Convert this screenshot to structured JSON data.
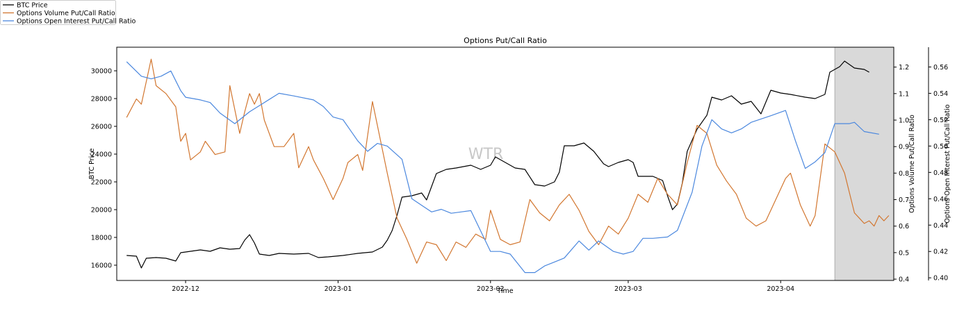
{
  "chart_data": {
    "type": "line",
    "title": "Options Put/Call Ratio",
    "xlabel": "Time",
    "watermark": "WTR",
    "x_range": [
      "2022-11-17",
      "2023-04-24"
    ],
    "x_ticks": [
      "2022-12",
      "2023-01",
      "2023-02",
      "2023-03",
      "2023-04"
    ],
    "highlight_span": [
      "2023-04-12",
      "2023-04-24"
    ],
    "highlight_color": "#d9d9d9",
    "axes": {
      "left": {
        "label": "BTC Price",
        "ylim": [
          14900,
          31700
        ],
        "ticks": [
          "16000",
          "18000",
          "20000",
          "22000",
          "24000",
          "26000",
          "28000",
          "30000"
        ]
      },
      "right1": {
        "label": "Options Volume Put/Call Ratio",
        "ylim": [
          0.395,
          1.275
        ],
        "ticks": [
          "0.4",
          "0.5",
          "0.6",
          "0.7",
          "0.8",
          "0.9",
          "1.0",
          "1.1",
          "1.2"
        ]
      },
      "right2": {
        "label": "Options Open Interest Put/Call Ratio",
        "ylim": [
          0.398,
          0.575
        ],
        "ticks": [
          "0.40",
          "0.42",
          "0.44",
          "0.46",
          "0.48",
          "0.50",
          "0.52",
          "0.54",
          "0.56"
        ]
      }
    },
    "legend": [
      {
        "name": "BTC Price",
        "color": "#000000"
      },
      {
        "name": "Options Volume Put/Call Ratio",
        "color": "#d2762f"
      },
      {
        "name": "Options Open Interest Put/Call Ratio",
        "color": "#4a87de"
      }
    ],
    "series": [
      {
        "name": "BTC Price",
        "axis": "left",
        "color": "#000000",
        "points": [
          [
            "2022-11-19",
            16700
          ],
          [
            "2022-11-21",
            16650
          ],
          [
            "2022-11-22",
            15800
          ],
          [
            "2022-11-23",
            16500
          ],
          [
            "2022-11-25",
            16550
          ],
          [
            "2022-11-27",
            16500
          ],
          [
            "2022-11-29",
            16300
          ],
          [
            "2022-11-30",
            16900
          ],
          [
            "2022-12-02",
            17000
          ],
          [
            "2022-12-04",
            17100
          ],
          [
            "2022-12-06",
            17000
          ],
          [
            "2022-12-08",
            17250
          ],
          [
            "2022-12-10",
            17150
          ],
          [
            "2022-12-12",
            17200
          ],
          [
            "2022-12-13",
            17800
          ],
          [
            "2022-12-14",
            18200
          ],
          [
            "2022-12-15",
            17600
          ],
          [
            "2022-12-16",
            16800
          ],
          [
            "2022-12-18",
            16700
          ],
          [
            "2022-12-20",
            16850
          ],
          [
            "2022-12-23",
            16800
          ],
          [
            "2022-12-26",
            16850
          ],
          [
            "2022-12-28",
            16550
          ],
          [
            "2022-12-30",
            16600
          ],
          [
            "2023-01-02",
            16700
          ],
          [
            "2023-01-05",
            16850
          ],
          [
            "2023-01-08",
            16950
          ],
          [
            "2023-01-10",
            17300
          ],
          [
            "2023-01-11",
            17800
          ],
          [
            "2023-01-12",
            18500
          ],
          [
            "2023-01-13",
            19600
          ],
          [
            "2023-01-14",
            20900
          ],
          [
            "2023-01-16",
            21000
          ],
          [
            "2023-01-18",
            21200
          ],
          [
            "2023-01-19",
            20700
          ],
          [
            "2023-01-21",
            22600
          ],
          [
            "2023-01-23",
            22900
          ],
          [
            "2023-01-25",
            23000
          ],
          [
            "2023-01-28",
            23200
          ],
          [
            "2023-01-30",
            22900
          ],
          [
            "2023-02-01",
            23200
          ],
          [
            "2023-02-02",
            23800
          ],
          [
            "2023-02-04",
            23400
          ],
          [
            "2023-02-06",
            23000
          ],
          [
            "2023-02-08",
            22900
          ],
          [
            "2023-02-10",
            21800
          ],
          [
            "2023-02-12",
            21700
          ],
          [
            "2023-02-14",
            22000
          ],
          [
            "2023-02-15",
            22700
          ],
          [
            "2023-02-16",
            24600
          ],
          [
            "2023-02-18",
            24600
          ],
          [
            "2023-02-20",
            24800
          ],
          [
            "2023-02-22",
            24200
          ],
          [
            "2023-02-24",
            23300
          ],
          [
            "2023-02-25",
            23100
          ],
          [
            "2023-02-27",
            23400
          ],
          [
            "2023-03-01",
            23600
          ],
          [
            "2023-03-02",
            23400
          ],
          [
            "2023-03-03",
            22400
          ],
          [
            "2023-03-06",
            22400
          ],
          [
            "2023-03-08",
            22100
          ],
          [
            "2023-03-09",
            21000
          ],
          [
            "2023-03-10",
            20000
          ],
          [
            "2023-03-11",
            20400
          ],
          [
            "2023-03-12",
            21900
          ],
          [
            "2023-03-13",
            24200
          ],
          [
            "2023-03-15",
            25800
          ],
          [
            "2023-03-17",
            26800
          ],
          [
            "2023-03-18",
            28100
          ],
          [
            "2023-03-20",
            27900
          ],
          [
            "2023-03-22",
            28200
          ],
          [
            "2023-03-24",
            27600
          ],
          [
            "2023-03-26",
            27800
          ],
          [
            "2023-03-28",
            26900
          ],
          [
            "2023-03-30",
            28600
          ],
          [
            "2023-04-01",
            28400
          ],
          [
            "2023-04-03",
            28300
          ],
          [
            "2023-04-06",
            28100
          ],
          [
            "2023-04-08",
            28000
          ],
          [
            "2023-04-10",
            28300
          ],
          [
            "2023-04-11",
            29900
          ],
          [
            "2023-04-13",
            30300
          ],
          [
            "2023-04-14",
            30700
          ],
          [
            "2023-04-16",
            30200
          ],
          [
            "2023-04-18",
            30100
          ],
          [
            "2023-04-19",
            29900
          ]
        ]
      },
      {
        "name": "Options Volume Put/Call Ratio",
        "axis": "right1",
        "color": "#d2762f",
        "points": [
          [
            "2022-11-19",
            1.01
          ],
          [
            "2022-11-21",
            1.08
          ],
          [
            "2022-11-22",
            1.06
          ],
          [
            "2022-11-24",
            1.23
          ],
          [
            "2022-11-25",
            1.13
          ],
          [
            "2022-11-27",
            1.1
          ],
          [
            "2022-11-29",
            1.05
          ],
          [
            "2022-11-30",
            0.92
          ],
          [
            "2022-12-01",
            0.95
          ],
          [
            "2022-12-02",
            0.85
          ],
          [
            "2022-12-04",
            0.88
          ],
          [
            "2022-12-05",
            0.92
          ],
          [
            "2022-12-07",
            0.87
          ],
          [
            "2022-12-09",
            0.88
          ],
          [
            "2022-12-10",
            1.13
          ],
          [
            "2022-12-12",
            0.95
          ],
          [
            "2022-12-13",
            1.03
          ],
          [
            "2022-12-14",
            1.1
          ],
          [
            "2022-12-15",
            1.06
          ],
          [
            "2022-12-16",
            1.1
          ],
          [
            "2022-12-17",
            1.0
          ],
          [
            "2022-12-19",
            0.9
          ],
          [
            "2022-12-21",
            0.9
          ],
          [
            "2022-12-23",
            0.95
          ],
          [
            "2022-12-24",
            0.82
          ],
          [
            "2022-12-26",
            0.9
          ],
          [
            "2022-12-27",
            0.85
          ],
          [
            "2022-12-29",
            0.78
          ],
          [
            "2022-12-31",
            0.7
          ],
          [
            "2023-01-02",
            0.78
          ],
          [
            "2023-01-03",
            0.84
          ],
          [
            "2023-01-05",
            0.87
          ],
          [
            "2023-01-06",
            0.81
          ],
          [
            "2023-01-08",
            1.07
          ],
          [
            "2023-01-09",
            0.98
          ],
          [
            "2023-01-11",
            0.8
          ],
          [
            "2023-01-13",
            0.63
          ],
          [
            "2023-01-15",
            0.55
          ],
          [
            "2023-01-17",
            0.46
          ],
          [
            "2023-01-19",
            0.54
          ],
          [
            "2023-01-21",
            0.53
          ],
          [
            "2023-01-23",
            0.47
          ],
          [
            "2023-01-25",
            0.54
          ],
          [
            "2023-01-27",
            0.52
          ],
          [
            "2023-01-29",
            0.57
          ],
          [
            "2023-01-31",
            0.55
          ],
          [
            "2023-02-01",
            0.66
          ],
          [
            "2023-02-03",
            0.55
          ],
          [
            "2023-02-05",
            0.53
          ],
          [
            "2023-02-07",
            0.54
          ],
          [
            "2023-02-09",
            0.7
          ],
          [
            "2023-02-11",
            0.65
          ],
          [
            "2023-02-13",
            0.62
          ],
          [
            "2023-02-15",
            0.68
          ],
          [
            "2023-02-17",
            0.72
          ],
          [
            "2023-02-19",
            0.66
          ],
          [
            "2023-02-21",
            0.58
          ],
          [
            "2023-02-23",
            0.53
          ],
          [
            "2023-02-25",
            0.6
          ],
          [
            "2023-02-27",
            0.57
          ],
          [
            "2023-03-01",
            0.63
          ],
          [
            "2023-03-03",
            0.72
          ],
          [
            "2023-03-05",
            0.69
          ],
          [
            "2023-03-07",
            0.78
          ],
          [
            "2023-03-09",
            0.72
          ],
          [
            "2023-03-11",
            0.68
          ],
          [
            "2023-03-13",
            0.84
          ],
          [
            "2023-03-15",
            0.98
          ],
          [
            "2023-03-17",
            0.95
          ],
          [
            "2023-03-19",
            0.83
          ],
          [
            "2023-03-21",
            0.77
          ],
          [
            "2023-03-23",
            0.72
          ],
          [
            "2023-03-25",
            0.63
          ],
          [
            "2023-03-27",
            0.6
          ],
          [
            "2023-03-29",
            0.62
          ],
          [
            "2023-03-31",
            0.7
          ],
          [
            "2023-04-02",
            0.78
          ],
          [
            "2023-04-03",
            0.8
          ],
          [
            "2023-04-05",
            0.68
          ],
          [
            "2023-04-07",
            0.6
          ],
          [
            "2023-04-08",
            0.64
          ],
          [
            "2023-04-10",
            0.91
          ],
          [
            "2023-04-12",
            0.88
          ],
          [
            "2023-04-14",
            0.8
          ],
          [
            "2023-04-16",
            0.65
          ],
          [
            "2023-04-17",
            0.63
          ],
          [
            "2023-04-18",
            0.61
          ],
          [
            "2023-04-19",
            0.62
          ],
          [
            "2023-04-20",
            0.6
          ],
          [
            "2023-04-21",
            0.64
          ],
          [
            "2023-04-22",
            0.62
          ],
          [
            "2023-04-23",
            0.64
          ]
        ]
      },
      {
        "name": "Options Open Interest Put/Call Ratio",
        "axis": "right2",
        "color": "#4a87de",
        "points": [
          [
            "2022-11-19",
            0.564
          ],
          [
            "2022-11-22",
            0.553
          ],
          [
            "2022-11-24",
            0.551
          ],
          [
            "2022-11-26",
            0.553
          ],
          [
            "2022-11-28",
            0.557
          ],
          [
            "2022-11-30",
            0.542
          ],
          [
            "2022-12-01",
            0.537
          ],
          [
            "2022-12-04",
            0.535
          ],
          [
            "2022-12-06",
            0.533
          ],
          [
            "2022-12-08",
            0.525
          ],
          [
            "2022-12-11",
            0.517
          ],
          [
            "2022-12-14",
            0.526
          ],
          [
            "2022-12-17",
            0.533
          ],
          [
            "2022-12-20",
            0.54
          ],
          [
            "2022-12-23",
            0.538
          ],
          [
            "2022-12-27",
            0.535
          ],
          [
            "2022-12-29",
            0.53
          ],
          [
            "2022-12-31",
            0.522
          ],
          [
            "2023-01-02",
            0.52
          ],
          [
            "2023-01-05",
            0.504
          ],
          [
            "2023-01-07",
            0.496
          ],
          [
            "2023-01-09",
            0.502
          ],
          [
            "2023-01-11",
            0.5
          ],
          [
            "2023-01-14",
            0.49
          ],
          [
            "2023-01-16",
            0.46
          ],
          [
            "2023-01-18",
            0.455
          ],
          [
            "2023-01-20",
            0.45
          ],
          [
            "2023-01-22",
            0.452
          ],
          [
            "2023-01-24",
            0.449
          ],
          [
            "2023-01-26",
            0.45
          ],
          [
            "2023-01-28",
            0.451
          ],
          [
            "2023-02-01",
            0.42
          ],
          [
            "2023-02-03",
            0.42
          ],
          [
            "2023-02-05",
            0.418
          ],
          [
            "2023-02-08",
            0.404
          ],
          [
            "2023-02-10",
            0.404
          ],
          [
            "2023-02-12",
            0.409
          ],
          [
            "2023-02-14",
            0.412
          ],
          [
            "2023-02-16",
            0.415
          ],
          [
            "2023-02-19",
            0.428
          ],
          [
            "2023-02-21",
            0.421
          ],
          [
            "2023-02-23",
            0.428
          ],
          [
            "2023-02-26",
            0.42
          ],
          [
            "2023-02-28",
            0.418
          ],
          [
            "2023-03-02",
            0.42
          ],
          [
            "2023-03-04",
            0.43
          ],
          [
            "2023-03-06",
            0.43
          ],
          [
            "2023-03-09",
            0.431
          ],
          [
            "2023-03-11",
            0.436
          ],
          [
            "2023-03-14",
            0.465
          ],
          [
            "2023-03-16",
            0.5
          ],
          [
            "2023-03-18",
            0.52
          ],
          [
            "2023-03-20",
            0.513
          ],
          [
            "2023-03-22",
            0.51
          ],
          [
            "2023-03-24",
            0.513
          ],
          [
            "2023-03-26",
            0.518
          ],
          [
            "2023-03-30",
            0.523
          ],
          [
            "2023-04-02",
            0.527
          ],
          [
            "2023-04-04",
            0.504
          ],
          [
            "2023-04-06",
            0.483
          ],
          [
            "2023-04-08",
            0.488
          ],
          [
            "2023-04-10",
            0.495
          ],
          [
            "2023-04-12",
            0.517
          ],
          [
            "2023-04-15",
            0.517
          ],
          [
            "2023-04-16",
            0.518
          ],
          [
            "2023-04-18",
            0.511
          ],
          [
            "2023-04-21",
            0.509
          ]
        ]
      }
    ]
  }
}
